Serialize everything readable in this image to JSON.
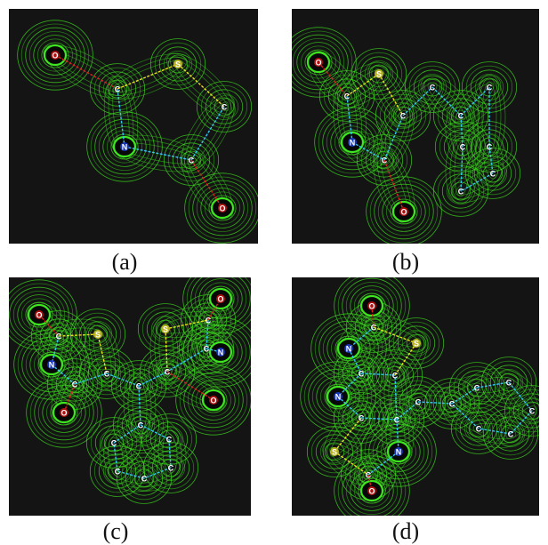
{
  "colors": {
    "background": "#141414",
    "contour": "#3de61e",
    "contour_dim": "#2a9c18",
    "bond_blue": "#33c6f0",
    "bond_red": "#e02020",
    "bond_yellow": "#e8e020"
  },
  "panels": [
    {
      "caption": "(a)",
      "atoms": [
        {
          "symbol": "O"
        },
        {
          "symbol": "S"
        },
        {
          "symbol": "C"
        },
        {
          "symbol": "C"
        },
        {
          "symbol": "N"
        },
        {
          "symbol": "C"
        },
        {
          "symbol": "O"
        }
      ]
    },
    {
      "caption": "(b)",
      "atoms": [
        {
          "symbol": "O"
        },
        {
          "symbol": "S"
        },
        {
          "symbol": "C"
        },
        {
          "symbol": "C"
        },
        {
          "symbol": "C"
        },
        {
          "symbol": "C"
        },
        {
          "symbol": "C"
        },
        {
          "symbol": "N"
        },
        {
          "symbol": "C"
        },
        {
          "symbol": "C"
        },
        {
          "symbol": "C"
        },
        {
          "symbol": "C"
        },
        {
          "symbol": "C"
        },
        {
          "symbol": "O"
        }
      ]
    },
    {
      "caption": "(c)",
      "atoms": [
        {
          "symbol": "O"
        },
        {
          "symbol": "C"
        },
        {
          "symbol": "S"
        },
        {
          "symbol": "N"
        },
        {
          "symbol": "C"
        },
        {
          "symbol": "C"
        },
        {
          "symbol": "O"
        },
        {
          "symbol": "C"
        },
        {
          "symbol": "S"
        },
        {
          "symbol": "C"
        },
        {
          "symbol": "O"
        },
        {
          "symbol": "C"
        },
        {
          "symbol": "N"
        },
        {
          "symbol": "C"
        },
        {
          "symbol": "O"
        },
        {
          "symbol": "C"
        },
        {
          "symbol": "C"
        },
        {
          "symbol": "C"
        },
        {
          "symbol": "C"
        },
        {
          "symbol": "C"
        },
        {
          "symbol": "C"
        }
      ]
    },
    {
      "caption": "(d)",
      "atoms": [
        {
          "symbol": "O"
        },
        {
          "symbol": "C"
        },
        {
          "symbol": "S"
        },
        {
          "symbol": "N"
        },
        {
          "symbol": "C"
        },
        {
          "symbol": "C"
        },
        {
          "symbol": "N"
        },
        {
          "symbol": "C"
        },
        {
          "symbol": "C"
        },
        {
          "symbol": "C"
        },
        {
          "symbol": "C"
        },
        {
          "symbol": "C"
        },
        {
          "symbol": "C"
        },
        {
          "symbol": "C"
        },
        {
          "symbol": "C"
        },
        {
          "symbol": "C"
        },
        {
          "symbol": "S"
        },
        {
          "symbol": "N"
        },
        {
          "symbol": "C"
        },
        {
          "symbol": "O"
        }
      ]
    }
  ]
}
